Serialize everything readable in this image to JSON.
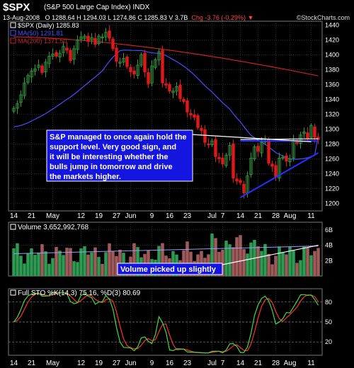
{
  "header": {
    "symbol": "$SPX",
    "subtitle": "(S&P 500 Large Cap Index) INDX",
    "date": "13-Aug-2008",
    "quote_text": "O 1288.64  H 1294.03  L 1274.86  C 1285.83  V 3.7B",
    "change_text": "Chg -3.76 (-0.29%) ▼",
    "credit": "©StockCharts.com"
  },
  "colors": {
    "background": "#000000",
    "panel_border": "#7a7a7a",
    "grid": "#4a4a4a",
    "up_candle": "#2c9c3c",
    "down_candle": "#e01818",
    "ma50": "#4c4cff",
    "ma200": "#cc2222",
    "volume_up": "#2e9a52",
    "volume_down": "#a05a5a",
    "sto_k": "#44d844",
    "sto_d": "#ff3030",
    "trendline": "#2233ff",
    "annotation_bg": "#1515e0"
  },
  "chart_data": [
    {
      "type": "candlestick",
      "title": "$SPX (Daily) 1285.83",
      "legend": [
        {
          "name": "$SPX (Daily) 1285.83",
          "color": "#ffffff"
        },
        {
          "name": "MA(50) 1291.81",
          "color": "#4c4cff"
        },
        {
          "name": "MA(200) 1371.50",
          "color": "#cc2222"
        }
      ],
      "ylim": [
        1190,
        1445
      ],
      "y_ticks": [
        1200,
        1220,
        1240,
        1260,
        1280,
        1300,
        1320,
        1340,
        1360,
        1380,
        1400,
        1420,
        1440
      ],
      "x_labels": [
        {
          "label": "14",
          "index": 0
        },
        {
          "label": "21",
          "index": 5
        },
        {
          "label": "May",
          "index": 11
        },
        {
          "label": "12",
          "index": 19
        },
        {
          "label": "19",
          "index": 24
        },
        {
          "label": "27",
          "index": 29
        },
        {
          "label": "Jun",
          "index": 33
        },
        {
          "label": "9",
          "index": 39
        },
        {
          "label": "16",
          "index": 44
        },
        {
          "label": "23",
          "index": 49
        },
        {
          "label": "Jul",
          "index": 56
        },
        {
          "label": "7",
          "index": 59
        },
        {
          "label": "14",
          "index": 64
        },
        {
          "label": "21",
          "index": 69
        },
        {
          "label": "28",
          "index": 74
        },
        {
          "label": "Aug",
          "index": 78
        },
        {
          "label": "11",
          "index": 84
        }
      ],
      "closes": [
        1328,
        1334,
        1346,
        1362,
        1372,
        1378,
        1381,
        1386,
        1376,
        1390,
        1398,
        1401,
        1398,
        1402,
        1411,
        1406,
        1392,
        1408,
        1420,
        1424,
        1425,
        1418,
        1423,
        1414,
        1425,
        1424,
        1430,
        1422,
        1408,
        1391,
        1390,
        1395,
        1384,
        1377,
        1374,
        1386,
        1400,
        1377,
        1361,
        1385,
        1393,
        1404,
        1362,
        1359,
        1351,
        1351,
        1357,
        1341,
        1337,
        1323,
        1319,
        1316,
        1302,
        1298,
        1282,
        1279,
        1284,
        1263,
        1260,
        1253,
        1265,
        1278,
        1234,
        1230,
        1228,
        1214,
        1237,
        1261,
        1276,
        1270,
        1283,
        1284,
        1254,
        1250,
        1236,
        1261,
        1262,
        1257,
        1260,
        1285,
        1281,
        1292,
        1296,
        1288,
        1305,
        1289,
        1286
      ],
      "series": [
        {
          "name": "MA(50)",
          "start": 1303,
          "end": 1291.81
        },
        {
          "name": "MA(200)",
          "start": 1424,
          "end": 1371.5
        }
      ],
      "trendlines": [
        {
          "from": [
            64,
            1208
          ],
          "to": [
            86,
            1268
          ]
        },
        {
          "from": [
            64,
            1286
          ],
          "to": [
            86,
            1287
          ]
        }
      ],
      "annotation": "S&P managed to once again hold the support level. Very good sign, and it will be interesting whether the bulls jump in tomorrow and drive the markets higher."
    },
    {
      "type": "bar",
      "title": "Volume 3,652,992,768",
      "y_ticks": [
        "2B",
        "4B",
        "6B"
      ],
      "annotation": "Volume picked up slightly"
    },
    {
      "type": "line",
      "title": "Full STO %K(14,3) 75.16, %D(3) 80.69",
      "ylim": [
        0,
        100
      ],
      "y_ticks": [
        20,
        50,
        80
      ],
      "series": [
        {
          "name": "%K",
          "last": 75.16
        },
        {
          "name": "%D",
          "last": 80.69
        }
      ]
    }
  ]
}
